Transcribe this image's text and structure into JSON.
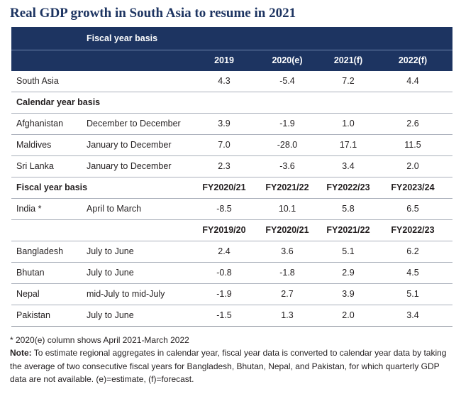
{
  "title": "Real GDP growth in South Asia to resume in 2021",
  "header": {
    "basis_label": "Fiscal year basis",
    "columns": [
      "2019",
      "2020(e)",
      "2021(f)",
      "2022(f)"
    ]
  },
  "rows": [
    {
      "country": "South Asia",
      "period": "",
      "values": [
        "4.3",
        "-5.4",
        "7.2",
        "4.4"
      ]
    },
    {
      "section": "Calendar year basis"
    },
    {
      "country": "Afghanistan",
      "period": "December to December",
      "values": [
        "3.9",
        "-1.9",
        "1.0",
        "2.6"
      ]
    },
    {
      "country": "Maldives",
      "period": "January to December",
      "values": [
        "7.0",
        "-28.0",
        "17.1",
        "11.5"
      ]
    },
    {
      "country": "Sri Lanka",
      "period": "January to December",
      "values": [
        "2.3",
        "-3.6",
        "3.4",
        "2.0"
      ]
    },
    {
      "section": "Fiscal year basis",
      "values": [
        "FY2020/21",
        "FY2021/22",
        "FY2022/23",
        "FY2023/24"
      ]
    },
    {
      "country": "India *",
      "period": "April to March",
      "values": [
        "-8.5",
        "10.1",
        "5.8",
        "6.5"
      ]
    },
    {
      "section": "",
      "values": [
        "FY2019/20",
        "FY2020/21",
        "FY2021/22",
        "FY2022/23"
      ]
    },
    {
      "country": "Bangladesh",
      "period": "July to June",
      "values": [
        "2.4",
        "3.6",
        "5.1",
        "6.2"
      ]
    },
    {
      "country": "Bhutan",
      "period": "July to June",
      "values": [
        "-0.8",
        "-1.8",
        "2.9",
        "4.5"
      ]
    },
    {
      "country": "Nepal",
      "period": "mid-July to mid-July",
      "values": [
        "-1.9",
        "2.7",
        "3.9",
        "5.1"
      ]
    },
    {
      "country": "Pakistan",
      "period": "July to June",
      "values": [
        "-1.5",
        "1.3",
        "2.0",
        "3.4"
      ]
    }
  ],
  "footnotes": {
    "asterisk": "* 2020(e) column shows April 2021-March 2022",
    "note_label": "Note:",
    "note_text": " To estimate regional aggregates in calendar year, fiscal year data is converted to calendar year data by taking the average of two consecutive fiscal years for Bangladesh, Bhutan, Nepal, and Pakistan, for which quarterly GDP data are not available. (e)=estimate, (f)=forecast."
  }
}
